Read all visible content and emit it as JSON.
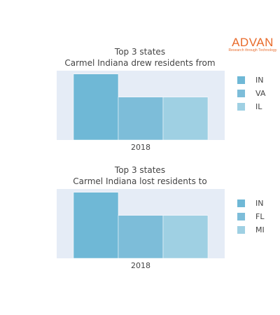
{
  "logo": {
    "word": "ADVAN",
    "tagline": "Research through Technology"
  },
  "colors": {
    "plot_background": "#e5ecf6",
    "series_1": "#6fb8d6",
    "series_2": "#7dbdd9",
    "series_3": "#9fd0e3",
    "text": "#444444",
    "logo": "#e86a2a"
  },
  "chart_data": [
    {
      "type": "bar",
      "title": "Top 3 states",
      "subtitle": "Carmel Indiana drew residents from",
      "categories": [
        "2018"
      ],
      "series": [
        {
          "name": "IN",
          "values": [
            100
          ]
        },
        {
          "name": "VA",
          "values": [
            65
          ]
        },
        {
          "name": "IL",
          "values": [
            65
          ]
        }
      ],
      "xlabel": "",
      "ylabel": "",
      "ylim": [
        0,
        105
      ],
      "grid": false,
      "legend": "right"
    },
    {
      "type": "bar",
      "title": "Top 3 states",
      "subtitle": "Carmel Indiana lost residents to",
      "categories": [
        "2018"
      ],
      "series": [
        {
          "name": "IN",
          "values": [
            100
          ]
        },
        {
          "name": "FL",
          "values": [
            65
          ]
        },
        {
          "name": "MI",
          "values": [
            65
          ]
        }
      ],
      "xlabel": "",
      "ylabel": "",
      "ylim": [
        0,
        105
      ],
      "grid": false,
      "legend": "right"
    }
  ]
}
